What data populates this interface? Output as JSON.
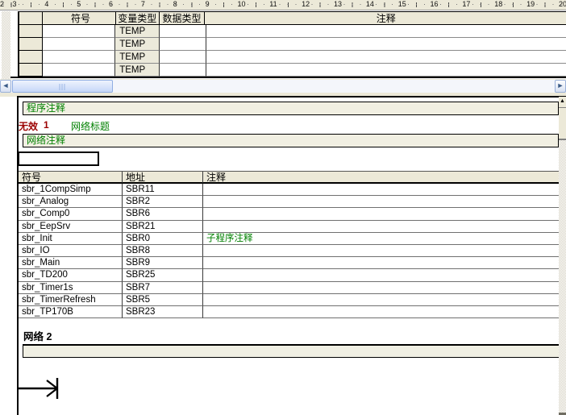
{
  "colors": {
    "comment_green": "#008000",
    "invalid_red": "#9b0000",
    "panel_beige": "#ece9d8",
    "box_beige": "#f1efe2"
  },
  "ruler": {
    "numbers": [
      "2",
      "3",
      "4",
      "5",
      "6",
      "7",
      "8",
      "9",
      "10",
      "11",
      "12",
      "13",
      "14",
      "15",
      "16",
      "17",
      "18",
      "19",
      "20"
    ]
  },
  "top_table": {
    "headers": {
      "symbol": "符号",
      "var_type": "变量类型",
      "data_type": "数据类型",
      "comment": "注释"
    },
    "rows": [
      {
        "symbol": "",
        "var_type": "TEMP",
        "data_type": "",
        "comment": ""
      },
      {
        "symbol": "",
        "var_type": "TEMP",
        "data_type": "",
        "comment": ""
      },
      {
        "symbol": "",
        "var_type": "TEMP",
        "data_type": "",
        "comment": ""
      },
      {
        "symbol": "",
        "var_type": "TEMP",
        "data_type": "",
        "comment": ""
      }
    ]
  },
  "program_editor": {
    "program_comment": "程序注释",
    "invalid_label": "无效",
    "network_number": "1",
    "network_title": "网络标题",
    "network_comment": "网络注释",
    "network2_label": "网络 2"
  },
  "symbol_table": {
    "headers": {
      "symbol": "符号",
      "address": "地址",
      "comment": "注释"
    },
    "rows": [
      {
        "symbol": "sbr_1CompSimp",
        "address": "SBR11",
        "comment": ""
      },
      {
        "symbol": "sbr_Analog",
        "address": "SBR2",
        "comment": ""
      },
      {
        "symbol": "sbr_Comp0",
        "address": "SBR6",
        "comment": ""
      },
      {
        "symbol": "sbr_EepSrv",
        "address": "SBR21",
        "comment": ""
      },
      {
        "symbol": "sbr_Init",
        "address": "SBR0",
        "comment": "子程序注释"
      },
      {
        "symbol": "sbr_IO",
        "address": "SBR8",
        "comment": ""
      },
      {
        "symbol": "sbr_Main",
        "address": "SBR9",
        "comment": ""
      },
      {
        "symbol": "sbr_TD200",
        "address": "SBR25",
        "comment": ""
      },
      {
        "symbol": "sbr_Timer1s",
        "address": "SBR7",
        "comment": ""
      },
      {
        "symbol": "sbr_TimerRefresh",
        "address": "SBR5",
        "comment": ""
      },
      {
        "symbol": "sbr_TP170B",
        "address": "SBR23",
        "comment": ""
      }
    ]
  },
  "scrollbars": {
    "left_arrow": "◄",
    "right_arrow": "►",
    "up_arrow": "▲"
  }
}
